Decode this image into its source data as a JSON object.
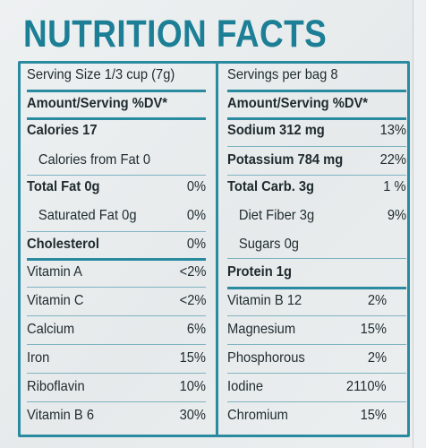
{
  "title": "NUTRITION FACTS",
  "left": {
    "serving": "Serving Size 1/3 cup (7g)",
    "header": "Amount/Serving %DV*",
    "rows": [
      {
        "name": "Calories 17",
        "val": ""
      },
      {
        "name": "Calories from Fat 0",
        "val": ""
      },
      {
        "name": "Total Fat 0g",
        "val": "0%"
      },
      {
        "name": "Saturated Fat 0g",
        "val": "0%"
      },
      {
        "name": "Cholesterol",
        "val": "0%"
      },
      {
        "name": "Vitamin A",
        "val": "<2%"
      },
      {
        "name": "Vitamin C",
        "val": "<2%"
      },
      {
        "name": "Calcium",
        "val": "6%"
      },
      {
        "name": "Iron",
        "val": "15%"
      },
      {
        "name": "Riboflavin",
        "val": "10%"
      },
      {
        "name": "Vitamin B 6",
        "val": "30%"
      }
    ]
  },
  "right": {
    "servings": "Servings per bag 8",
    "header": "Amount/Serving %DV*",
    "rows": [
      {
        "name": "Sodium 312 mg",
        "val": "13%"
      },
      {
        "name": "Potassium 784 mg",
        "val": "22%"
      },
      {
        "name": "Total Carb. 3g",
        "val": "1 %"
      },
      {
        "name": "Diet Fiber 3g",
        "val": "9%"
      },
      {
        "name": "Sugars 0g",
        "val": ""
      },
      {
        "name": "Protein 1g",
        "val": ""
      },
      {
        "name": "Vitamin B 12",
        "val": "2%"
      },
      {
        "name": "Magnesium",
        "val": "15%"
      },
      {
        "name": "Phosphorous",
        "val": "2%"
      },
      {
        "name": "Iodine",
        "val": "2110%"
      },
      {
        "name": "Chromium",
        "val": "15%"
      }
    ]
  },
  "colors": {
    "accent": "#1c7f96",
    "rule": "#2a8aa0",
    "text": "#1f2a2e"
  }
}
